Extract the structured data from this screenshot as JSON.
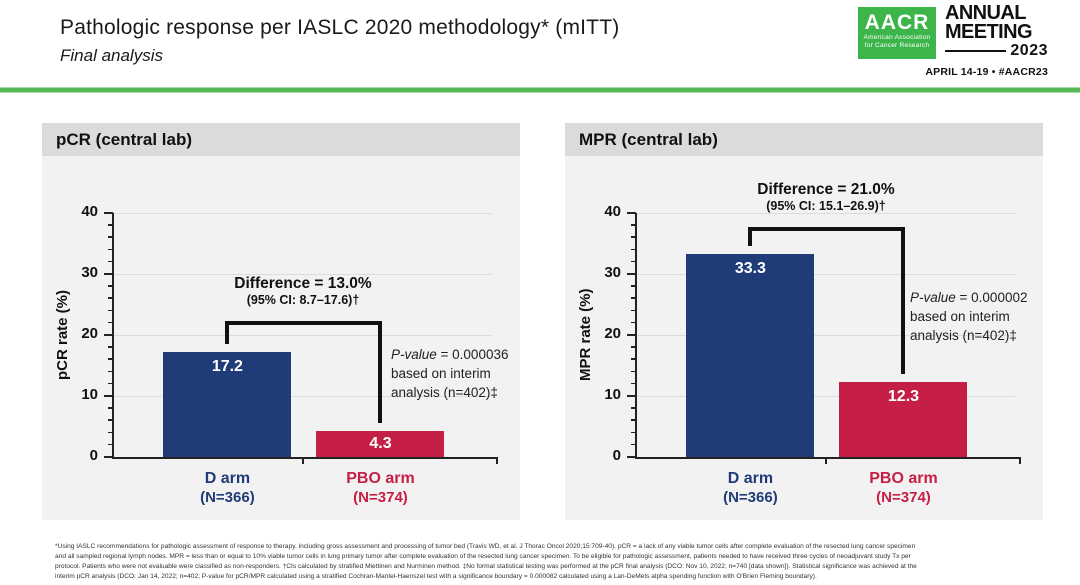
{
  "slide": {
    "title": "Pathologic response per IASLC 2020 methodology* (mITT)",
    "subtitle": "Final analysis"
  },
  "logo": {
    "acronym": "AACR",
    "org_line1": "American Association",
    "org_line2": "for Cancer Research",
    "event_line1": "ANNUAL",
    "event_line2": "MEETING",
    "year": "2023",
    "tagline": "APRIL 14-19 • #AACR23",
    "green": "#3cb54a"
  },
  "chart_data": [
    {
      "type": "bar",
      "title": "pCR (central lab)",
      "ylabel": "pCR rate (%)",
      "ymax": 40,
      "ylim": [
        0,
        40
      ],
      "yticks": [
        0,
        10,
        20,
        30,
        40
      ],
      "minor_tick_step": 2,
      "grid": "horizontal",
      "categories": [
        "D arm",
        "PBO arm"
      ],
      "category_sublabels": [
        "(N=366)",
        "(N=374)"
      ],
      "values": [
        17.2,
        4.3
      ],
      "value_labels": [
        "17.2",
        "4.3"
      ],
      "bar_colors": [
        "#203c78",
        "#c51f45"
      ],
      "bracket_level": 22.3,
      "diff_label": "Difference = 13.0%",
      "ci_label": "(95% CI: 8.7–17.6)†",
      "p_label": "P-value",
      "p_rest": " = 0.000036",
      "p_line2": "based on interim",
      "p_line3": "analysis (n=402)‡"
    },
    {
      "type": "bar",
      "title": "MPR (central lab)",
      "ylabel": "MPR rate (%)",
      "ymax": 40,
      "ylim": [
        0,
        40
      ],
      "yticks": [
        0,
        10,
        20,
        30,
        40
      ],
      "minor_tick_step": 2,
      "grid": "horizontal",
      "categories": [
        "D arm",
        "PBO arm"
      ],
      "category_sublabels": [
        "(N=366)",
        "(N=374)"
      ],
      "values": [
        33.3,
        12.3
      ],
      "value_labels": [
        "33.3",
        "12.3"
      ],
      "bar_colors": [
        "#203c78",
        "#c51f45"
      ],
      "bracket_level": 37.7,
      "diff_label": "Difference = 21.0%",
      "ci_label": "(95% CI: 15.1–26.9)†",
      "p_label": "P-value",
      "p_rest": " = 0.000002",
      "p_line2": "based on interim",
      "p_line3": "analysis (n=402)‡"
    }
  ],
  "footnote": {
    "lines": [
      "*Using IASLC recommendations for pathologic assessment of response to therapy, including gross assessment and processing of tumor bed (Travis WD, et al. J Thorac Oncol 2020;15:709-40). pCR = a lack of any viable tumor cells after complete evaluation of the resected lung cancer specimen",
      "and all sampled regional lymph nodes. MPR = less than or equal to 10% viable tumor cells in lung primary tumor after complete evaluation of the resected lung cancer specimen. To be eligible for pathologic assessment, patients needed to have received three cycles of neoadjuvant study Tx per",
      "protocol. Patients who were not evaluable were classified as non-responders. †CIs calculated by stratified Miettinen and Nurminen method. ‡No formal statistical testing was performed at the pCR final analysis (DCO: Nov 10, 2022; n=740 [data shown]). Statistical significance was achieved at the",
      "interim pCR analysis (DCO: Jan 14, 2022; n=402; P-value for pCR/MPR calculated using a stratified Cochran-Mantel-Haenszel test with a significance boundary = 0.000082 calculated using a Lan-DeMets alpha spending function with O'Brien Fleming boundary)."
    ]
  }
}
